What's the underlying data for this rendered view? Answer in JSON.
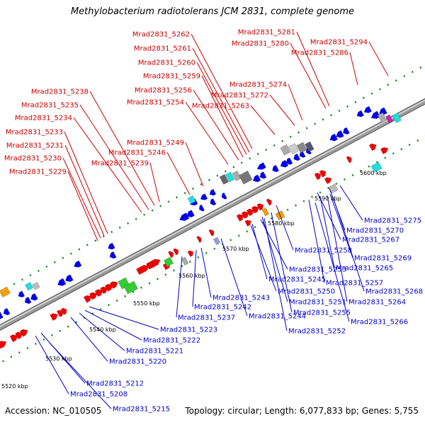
{
  "title": "Methylobacterium radiotolerans JCM 2831, complete genome",
  "footer": {
    "accession": "Accession: NC_010505",
    "summary": "Topology: circular; Length: 6,077,833 bp; Genes: 5,755"
  },
  "colors": {
    "forward_gene": "#ee0000",
    "reverse_gene": "#0000ee",
    "backbone": "#9a9a9a",
    "tick": "#118811",
    "rna_orange": "#f0a000",
    "rna_cyan": "#22dddd",
    "rna_green": "#33cc33",
    "rna_grey": "#aaaaaa",
    "rna_magenta": "#cc22aa"
  },
  "scale_labels": [
    "5520 kbp",
    "5530 kbp",
    "5540 kbp",
    "5550 kbp",
    "5560 kbp",
    "5570 kbp",
    "5580 kbp",
    "5590 kbp",
    "5600 kbp"
  ],
  "forward_labels": [
    "Mrad2831_5262",
    "Mrad2831_5261",
    "Mrad2831_5260",
    "Mrad2831_5259",
    "Mrad2831_5256",
    "Mrad2831_5254",
    "Mrad2831_5238",
    "Mrad2831_5235",
    "Mrad2831_5234",
    "Mrad2831_5233",
    "Mrad2831_5231",
    "Mrad2831_5230",
    "Mrad2831_5229",
    "Mrad2831_5249",
    "Mrad2831_5246",
    "Mrad2831_5239",
    "Mrad2831_5281",
    "Mrad2831_5280",
    "Mrad2831_5294",
    "Mrad2831_5286",
    "Mrad2831_5274",
    "Mrad2831_5272",
    "Mrad2831_5263"
  ],
  "reverse_labels": [
    "Mrad2831_5275",
    "Mrad2831_5270",
    "Mrad2831_5267",
    "Mrad2831_5258",
    "Mrad2831_5269",
    "Mrad2831_5253",
    "Mrad2831_5265",
    "Mrad2831_5245",
    "Mrad2831_5257",
    "Mrad2831_5250",
    "Mrad2831_5268",
    "Mrad2831_5243",
    "Mrad2831_5251",
    "Mrad2831_5264",
    "Mrad2831_5242",
    "Mrad2831_5255",
    "Mrad2831_5237",
    "Mrad2831_5244",
    "Mrad2831_5266",
    "Mrad2831_5223",
    "Mrad2831_5252",
    "Mrad2831_5222",
    "Mrad2831_5221",
    "Mrad2831_5220",
    "Mrad2831_5212",
    "Mrad2831_5208",
    "Mrad2831_5215"
  ]
}
